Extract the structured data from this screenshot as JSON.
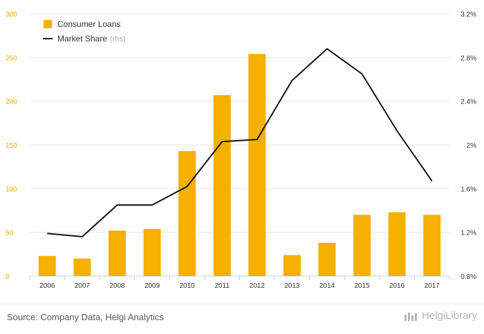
{
  "chart_data": {
    "type": "bar",
    "categories": [
      "2006",
      "2007",
      "2008",
      "2009",
      "2010",
      "2011",
      "2012",
      "2013",
      "2014",
      "2015",
      "2016",
      "2017"
    ],
    "series": [
      {
        "name": "Consumer Loans",
        "kind": "bar",
        "axis": "left",
        "color": "#f5b000",
        "values": [
          23,
          20,
          52,
          54,
          143,
          207,
          254,
          24,
          38,
          70,
          73,
          70
        ]
      },
      {
        "name": "Market Share",
        "kind": "line",
        "axis": "right",
        "color": "#111111",
        "values": [
          1.19,
          1.16,
          1.45,
          1.45,
          1.62,
          2.03,
          2.05,
          2.59,
          2.88,
          2.65,
          2.13,
          1.67
        ]
      }
    ],
    "legend": [
      {
        "label": "Consumer Loans",
        "suffix": ""
      },
      {
        "label": "Market Share",
        "suffix": "(rhs)"
      }
    ],
    "left_axis": {
      "min": 0,
      "max": 300,
      "ticks": [
        "0",
        "50",
        "100",
        "150",
        "200",
        "250",
        "300"
      ]
    },
    "right_axis": {
      "min": 0.8,
      "max": 3.2,
      "ticks": [
        "0.8%",
        "1.2%",
        "1.6%",
        "2%",
        "2.4%",
        "2.8%",
        "3.2%"
      ]
    },
    "grid": true,
    "legend_position": "top-left"
  },
  "footer": {
    "source": "Source: Company Data, Helgi Analytics",
    "brand": "HelgiLibrary"
  },
  "colors": {
    "bar": "#f5b000",
    "line": "#111111",
    "left_tick": "#e8a600",
    "right_tick": "#333333",
    "grid": "#e6e6e6"
  }
}
